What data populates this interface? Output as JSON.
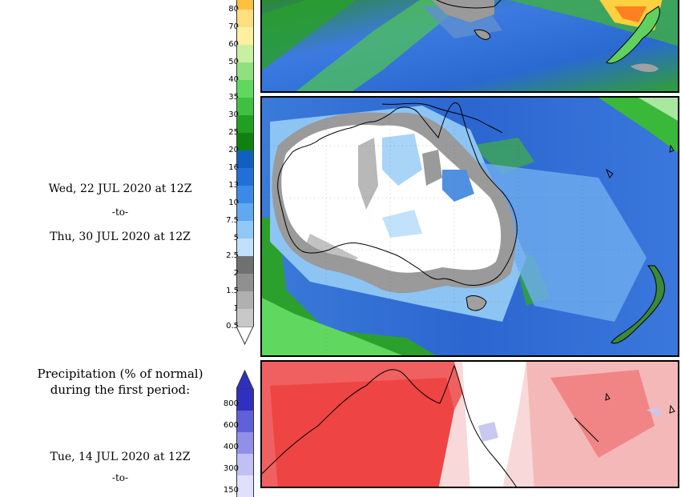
{
  "period2": {
    "start": "Wed, 22 JUL 2020 at 12Z",
    "sep": "-to-",
    "end": "Thu, 30 JUL 2020 at 12Z"
  },
  "pct_section": {
    "title_line1": "Precipitation (% of normal)",
    "title_line2": "during the first period:",
    "start": "Tue, 14 JUL 2020 at 12Z",
    "sep": "-to-"
  },
  "precip_legend": {
    "labels": [
      "80",
      "70",
      "60",
      "50",
      "40",
      "35",
      "30",
      "25",
      "20",
      "16",
      "13",
      "10",
      "7.5",
      "5",
      "2.5",
      "2",
      "1.5",
      "1",
      "0.5"
    ],
    "colors": [
      "#ffc040",
      "#ffe080",
      "#fff0a0",
      "#c8f0a0",
      "#90e080",
      "#60d860",
      "#40c040",
      "#20a020",
      "#108010",
      "#1060c0",
      "#2070d8",
      "#3c8ae8",
      "#60a8f0",
      "#90c8f8",
      "#c0e0fc",
      "#707070",
      "#909090",
      "#b0b0b0",
      "#c8c8c8"
    ]
  },
  "pct_legend": {
    "labels": [
      "800",
      "600",
      "400",
      "300",
      "150"
    ],
    "colors": [
      "#3030c0",
      "#6060d8",
      "#9090e8",
      "#c0c0f4",
      "#e0e0fc"
    ]
  }
}
